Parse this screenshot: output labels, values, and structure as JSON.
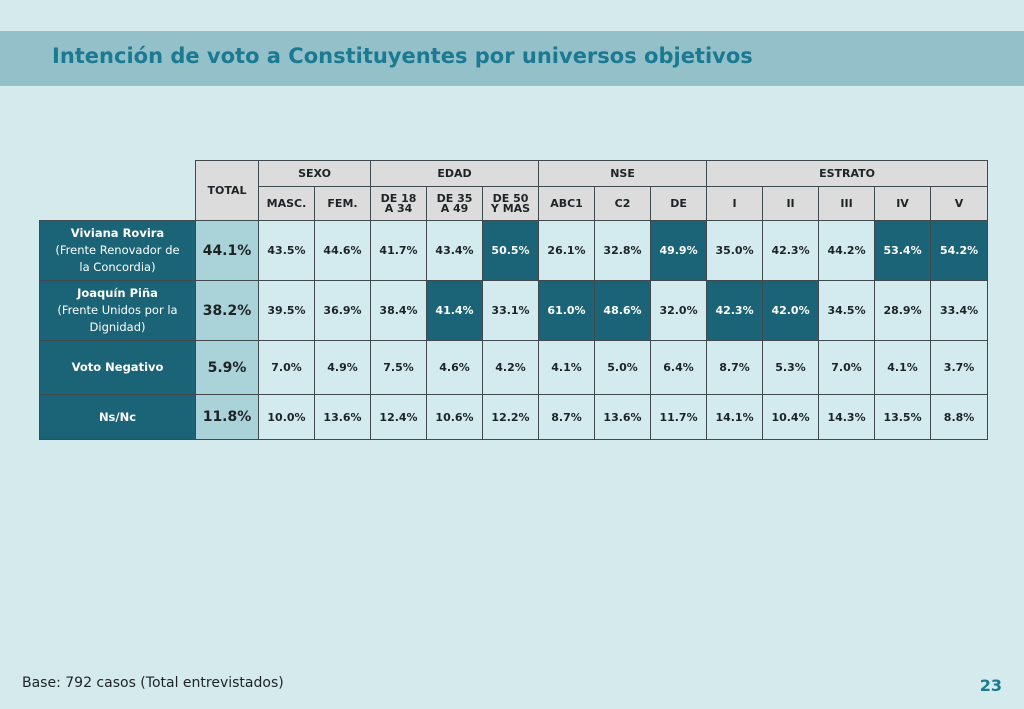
{
  "title": "Intención de voto a Constituyentes por universos objetivos",
  "header": {
    "total": "TOTAL",
    "groups": [
      "SEXO",
      "EDAD",
      "NSE",
      "ESTRATO"
    ],
    "columns": [
      "MASC.",
      "FEM.",
      "DE 18\nA 34",
      "DE 35\nA 49",
      "DE 50\nY MAS",
      "ABC1",
      "C2",
      "DE",
      "I",
      "II",
      "III",
      "IV",
      "V"
    ]
  },
  "rows": [
    {
      "name": "Viviana Rovira",
      "sub": "(Frente Renovador de la Concordia)",
      "total": "44.1%",
      "values": [
        "43.5%",
        "44.6%",
        "41.7%",
        "43.4%",
        "50.5%",
        "26.1%",
        "32.8%",
        "49.9%",
        "35.0%",
        "42.3%",
        "44.2%",
        "53.4%",
        "54.2%"
      ],
      "highlight": [
        4,
        7,
        11,
        12
      ]
    },
    {
      "name": "Joaquín Piña",
      "sub": "(Frente Unidos por la Dignidad)",
      "total": "38.2%",
      "values": [
        "39.5%",
        "36.9%",
        "38.4%",
        "41.4%",
        "33.1%",
        "61.0%",
        "48.6%",
        "32.0%",
        "42.3%",
        "42.0%",
        "34.5%",
        "28.9%",
        "33.4%"
      ],
      "highlight": [
        3,
        5,
        6,
        8,
        9
      ]
    },
    {
      "name": "Voto Negativo",
      "sub": "",
      "total": "5.9%",
      "values": [
        "7.0%",
        "4.9%",
        "7.5%",
        "4.6%",
        "4.2%",
        "4.1%",
        "5.0%",
        "6.4%",
        "8.7%",
        "5.3%",
        "7.0%",
        "4.1%",
        "3.7%"
      ],
      "highlight": []
    },
    {
      "name": "Ns/Nc",
      "sub": "",
      "total": "11.8%",
      "values": [
        "10.0%",
        "13.6%",
        "12.4%",
        "10.6%",
        "12.2%",
        "8.7%",
        "13.6%",
        "11.7%",
        "14.1%",
        "10.4%",
        "14.3%",
        "13.5%",
        "8.8%"
      ],
      "highlight": []
    }
  ],
  "footer": {
    "base": "Base: 792 casos (Total entrevistados)",
    "page": "23"
  },
  "colors": {
    "background": "#d4eaed",
    "title_bar": "#94c0c9",
    "title_text": "#1a7a92",
    "highlight": "#1b6478",
    "total_column": "#a9d2d9",
    "header": "#dcdcdc"
  }
}
